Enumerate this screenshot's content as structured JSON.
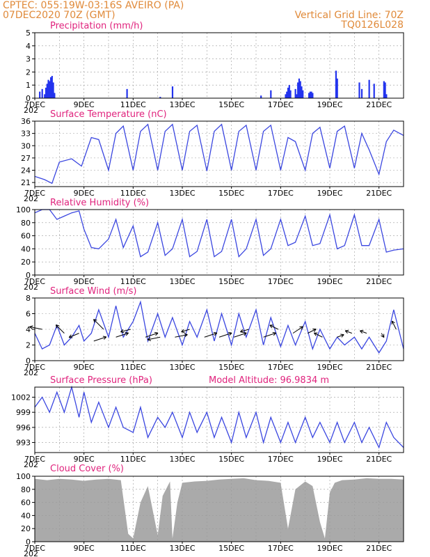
{
  "header": {
    "line1": "CPTEC:   055:19W-03:16S   AVEIRO (PA)",
    "line2": "07DEC2020 70Z (GMT)",
    "right1": "Vertical Grid Line: 70Z",
    "right2": "TQ0126L028"
  },
  "x_axis": {
    "labels": [
      "7DEC",
      "9DEC",
      "11DEC",
      "13DEC",
      "15DEC",
      "17DEC",
      "19DEC",
      "21DEC"
    ],
    "label_days": [
      0,
      2,
      4,
      6,
      8,
      10,
      12,
      14
    ],
    "days": 15,
    "stub": "202"
  },
  "colors": {
    "line": "#3a46e0",
    "bar": "#2233ee",
    "cloud": "#aaaaaa",
    "grid": "#999999",
    "title": "#e0237d",
    "header": "#e08a3a"
  },
  "panels": {
    "precip": {
      "title": "Precipitation (mm/h)"
    },
    "temp": {
      "title": "Surface Temperature (nC)"
    },
    "rh": {
      "title": "Relative Humidity (%)"
    },
    "wind": {
      "title": "Surface Wind (m/s)"
    },
    "pres": {
      "title": "Surface Pressure (hPa)",
      "extra": "Model Altitude: 96.9834 m"
    },
    "cloud": {
      "title": "Cloud Cover (%)"
    }
  },
  "chart_data": [
    {
      "type": "bar",
      "id": "precip",
      "title": "Precipitation (mm/h)",
      "ylim": [
        0,
        5
      ],
      "yticks": [
        0,
        1,
        2,
        3,
        4,
        5
      ],
      "x": [
        0.2,
        0.3,
        0.4,
        0.45,
        0.5,
        0.55,
        0.6,
        0.65,
        0.7,
        0.75,
        0.8,
        3.75,
        5.1,
        5.6,
        9.2,
        9.6,
        10.2,
        10.25,
        10.3,
        10.35,
        10.4,
        10.6,
        10.65,
        10.7,
        10.75,
        10.8,
        10.85,
        10.9,
        11.15,
        11.2,
        11.25,
        11.3,
        12.25,
        12.3,
        13.2,
        13.3,
        13.6,
        13.8,
        14.2,
        14.25,
        14.3
      ],
      "values": [
        0.5,
        0.7,
        0.3,
        0.8,
        1.1,
        1.4,
        1.3,
        1.6,
        1.7,
        1.2,
        0.4,
        0.7,
        0.1,
        0.9,
        0.2,
        0.6,
        0.3,
        0.5,
        0.8,
        1.0,
        0.6,
        0.7,
        0.3,
        1.2,
        1.5,
        1.3,
        0.9,
        0.6,
        0.4,
        0.5,
        0.5,
        0.4,
        2.1,
        1.5,
        1.2,
        0.7,
        1.4,
        1.1,
        1.3,
        1.2,
        0.3
      ]
    },
    {
      "type": "line",
      "id": "temp",
      "title": "Surface Temperature (nC)",
      "ylim": [
        20,
        36
      ],
      "yticks": [
        21,
        24,
        27,
        30,
        33,
        36
      ],
      "x": [
        0,
        0.4,
        0.7,
        1.0,
        1.5,
        1.9,
        2.3,
        2.6,
        3.0,
        3.3,
        3.6,
        4.0,
        4.3,
        4.6,
        5.0,
        5.3,
        5.6,
        6.0,
        6.3,
        6.6,
        7.0,
        7.3,
        7.6,
        8.0,
        8.3,
        8.6,
        9.0,
        9.3,
        9.6,
        10.0,
        10.3,
        10.6,
        11.0,
        11.3,
        11.6,
        12.0,
        12.3,
        12.6,
        13.0,
        13.3,
        13.6,
        14.0,
        14.3,
        14.6,
        15.0
      ],
      "values": [
        22.5,
        21.7,
        20.8,
        26.0,
        26.8,
        25.0,
        32.0,
        31.5,
        24.0,
        33.0,
        34.8,
        24.0,
        33.5,
        35.2,
        24.0,
        33.5,
        35.2,
        24.0,
        33.5,
        35.0,
        23.8,
        33.5,
        35.2,
        24.0,
        33.5,
        35.0,
        24.0,
        33.5,
        35.0,
        24.0,
        32.0,
        31.0,
        24.0,
        33.0,
        34.5,
        24.5,
        33.5,
        34.8,
        24.5,
        33.0,
        29.0,
        23.0,
        31.0,
        33.8,
        32.5
      ]
    },
    {
      "type": "line",
      "id": "rh",
      "title": "Relative Humidity (%)",
      "ylim": [
        0,
        100
      ],
      "yticks": [
        0,
        20,
        40,
        60,
        80,
        100
      ],
      "x": [
        0,
        0.3,
        0.6,
        0.9,
        1.2,
        1.5,
        1.8,
        2.0,
        2.3,
        2.6,
        3.0,
        3.3,
        3.6,
        4.0,
        4.3,
        4.6,
        5.0,
        5.3,
        5.6,
        6.0,
        6.3,
        6.6,
        7.0,
        7.3,
        7.6,
        8.0,
        8.3,
        8.6,
        9.0,
        9.3,
        9.6,
        10.0,
        10.3,
        10.6,
        11.0,
        11.3,
        11.6,
        12.0,
        12.3,
        12.6,
        13.0,
        13.3,
        13.6,
        14.0,
        14.3,
        14.6,
        15.0
      ],
      "values": [
        95,
        100,
        100,
        85,
        90,
        95,
        98,
        70,
        42,
        40,
        55,
        85,
        42,
        75,
        28,
        35,
        80,
        30,
        40,
        85,
        28,
        36,
        85,
        28,
        36,
        85,
        28,
        40,
        85,
        30,
        40,
        85,
        45,
        50,
        90,
        45,
        48,
        92,
        40,
        45,
        92,
        45,
        45,
        85,
        35,
        38,
        40
      ]
    },
    {
      "type": "line",
      "id": "wind",
      "title": "Surface Wind (m/s)",
      "ylim": [
        0,
        8
      ],
      "yticks": [
        0,
        2,
        4,
        6,
        8
      ],
      "x": [
        0,
        0.3,
        0.6,
        0.9,
        1.2,
        1.5,
        1.8,
        2.0,
        2.3,
        2.6,
        3.0,
        3.3,
        3.6,
        4.0,
        4.3,
        4.6,
        5.0,
        5.3,
        5.6,
        6.0,
        6.3,
        6.6,
        7.0,
        7.3,
        7.6,
        8.0,
        8.3,
        8.6,
        9.0,
        9.3,
        9.6,
        10.0,
        10.3,
        10.6,
        11.0,
        11.3,
        11.6,
        12.0,
        12.3,
        12.6,
        13.0,
        13.3,
        13.6,
        14.0,
        14.3,
        14.6,
        15.0
      ],
      "values": [
        3.5,
        1.5,
        2.0,
        4.5,
        2.0,
        3.0,
        4.5,
        2.5,
        3.5,
        6.5,
        3.0,
        7.0,
        3.0,
        5.0,
        7.5,
        2.5,
        6.0,
        3.0,
        5.5,
        2.0,
        5.0,
        3.0,
        6.5,
        2.5,
        6.0,
        2.0,
        6.0,
        3.0,
        6.5,
        2.0,
        5.5,
        1.8,
        4.5,
        2.0,
        5.0,
        1.5,
        4.0,
        1.5,
        3.0,
        2.0,
        3.0,
        1.5,
        3.0,
        1.0,
        2.5,
        6.5,
        1.5
      ]
    },
    {
      "type": "line",
      "id": "pres",
      "title": "Surface Pressure (hPa)",
      "ylim": [
        991,
        1004
      ],
      "yticks": [
        993,
        996,
        999,
        1002
      ],
      "x": [
        0,
        0.3,
        0.6,
        0.9,
        1.2,
        1.5,
        1.8,
        2.0,
        2.3,
        2.6,
        3.0,
        3.3,
        3.6,
        4.0,
        4.3,
        4.6,
        5.0,
        5.3,
        5.6,
        6.0,
        6.3,
        6.6,
        7.0,
        7.3,
        7.6,
        8.0,
        8.3,
        8.6,
        9.0,
        9.3,
        9.6,
        10.0,
        10.3,
        10.6,
        11.0,
        11.3,
        11.6,
        12.0,
        12.3,
        12.6,
        13.0,
        13.3,
        13.6,
        14.0,
        14.3,
        14.6,
        15.0
      ],
      "values": [
        1000,
        1002,
        999,
        1003,
        999,
        1004,
        998,
        1003,
        997,
        1001,
        996,
        1000,
        996,
        995,
        1000,
        994,
        998,
        996,
        999,
        994,
        999,
        995,
        999,
        994,
        998,
        993,
        999,
        994,
        999,
        993,
        998,
        993,
        997,
        993,
        998,
        994,
        997,
        993,
        997,
        993,
        997,
        993,
        996,
        992,
        997,
        994,
        992
      ]
    },
    {
      "type": "area",
      "id": "cloud",
      "title": "Cloud Cover (%)",
      "ylim": [
        0,
        100
      ],
      "yticks": [
        0,
        20,
        40,
        60,
        80,
        100
      ],
      "x": [
        0,
        0.5,
        1.0,
        1.5,
        2.0,
        2.5,
        3.0,
        3.5,
        3.8,
        4.0,
        4.3,
        4.6,
        5.0,
        5.2,
        5.5,
        5.6,
        5.8,
        6.0,
        6.5,
        7.0,
        7.5,
        8.0,
        8.5,
        9.0,
        9.5,
        10.0,
        10.3,
        10.6,
        11.0,
        11.3,
        11.6,
        11.8,
        12.0,
        12.2,
        12.5,
        13.0,
        13.5,
        14.0,
        14.5,
        15.0
      ],
      "values": [
        96,
        94,
        96,
        95,
        93,
        95,
        96,
        94,
        12,
        5,
        60,
        85,
        10,
        70,
        92,
        5,
        60,
        90,
        92,
        93,
        95,
        96,
        97,
        94,
        93,
        90,
        20,
        80,
        92,
        85,
        30,
        5,
        75,
        90,
        94,
        95,
        97,
        96,
        96,
        95
      ]
    },
    {
      "type": "wind_vectors",
      "id": "wind_arrows",
      "x": [
        0.3,
        1.2,
        1.8,
        2.4,
        2.8,
        3.3,
        3.9,
        4.5,
        5.1,
        5.7,
        6.3,
        6.9,
        7.5,
        8.1,
        8.7,
        9.3,
        9.9,
        10.5,
        11.1,
        11.7,
        12.3,
        12.9,
        13.5,
        14.1,
        14.7
      ],
      "u": [
        -1.5,
        -1.0,
        -1.2,
        1.5,
        -1.2,
        1.5,
        -1.2,
        1.5,
        -1.5,
        1.5,
        -1.0,
        1.5,
        1.5,
        1.5,
        -1.0,
        1.5,
        -1.0,
        1.2,
        1.0,
        -1.0,
        0.8,
        -0.8,
        -0.8,
        0.3,
        -0.5
      ],
      "v": [
        0.3,
        1.0,
        -0.5,
        0.5,
        1.2,
        0.5,
        -0.3,
        0.5,
        -0.3,
        0.3,
        -0.3,
        0.5,
        0.5,
        0.5,
        -0.3,
        0.5,
        0.5,
        0.8,
        0.5,
        0.5,
        0.3,
        0.3,
        0.3,
        -0.5,
        1.0
      ],
      "y": [
        4,
        3.5,
        3.5,
        2.5,
        4,
        3,
        4,
        3,
        3,
        3,
        4,
        3,
        3,
        3,
        4,
        3,
        4,
        3.5,
        3.5,
        3,
        3,
        3.5,
        3.5,
        3.5,
        4
      ]
    }
  ]
}
